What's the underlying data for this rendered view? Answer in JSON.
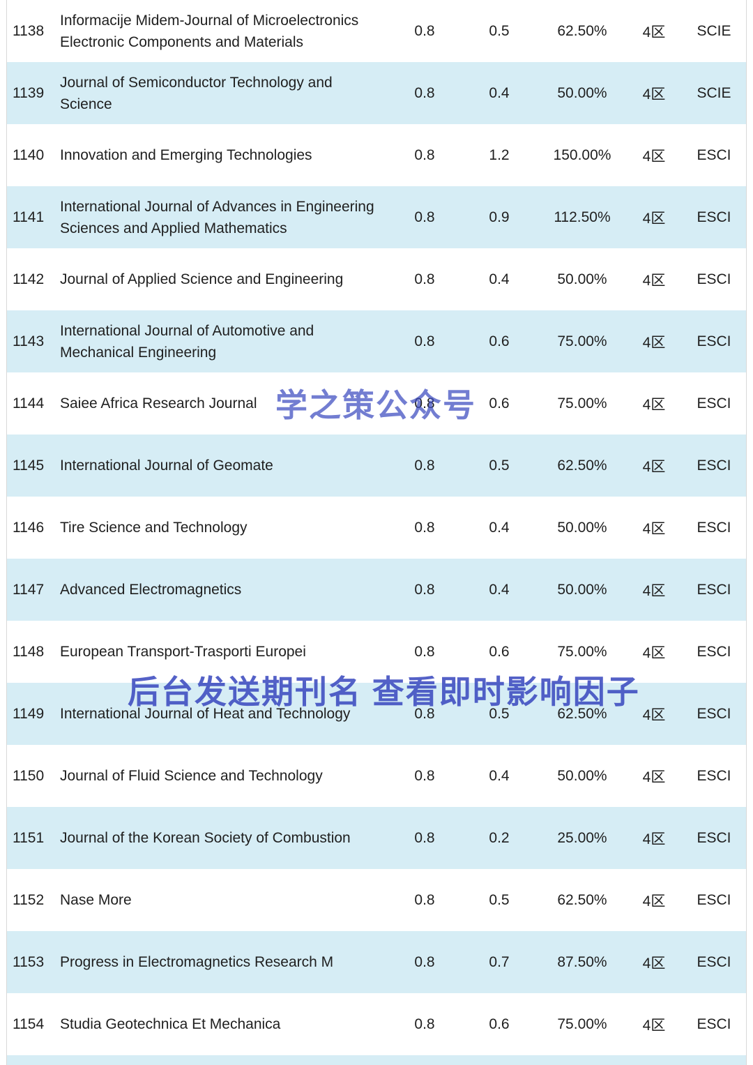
{
  "page": {
    "background": "#ffffff",
    "row_alt_color": "#d6edf5",
    "text_color": "#1f1f1f",
    "border_color": "#d8d8d8"
  },
  "watermarks": {
    "center": "学之策公众号",
    "bottom": "后台发送期刊名 查看即时影响因子",
    "color": "#3d4cc0"
  },
  "table": {
    "columns": [
      "num",
      "name",
      "if1",
      "if2",
      "pct",
      "zone",
      "index"
    ],
    "rows": [
      {
        "num": "1138",
        "name": "Informacije Midem-Journal of Microelectronics Electronic Components and Materials",
        "if1": "0.8",
        "if2": "0.5",
        "pct": "62.50%",
        "zone": "4区",
        "index": "SCIE"
      },
      {
        "num": "1139",
        "name": "Journal of Semiconductor Technology and Science",
        "if1": "0.8",
        "if2": "0.4",
        "pct": "50.00%",
        "zone": "4区",
        "index": "SCIE"
      },
      {
        "num": "1140",
        "name": "Innovation and Emerging Technologies",
        "if1": "0.8",
        "if2": "1.2",
        "pct": "150.00%",
        "zone": "4区",
        "index": "ESCI"
      },
      {
        "num": "1141",
        "name": "International Journal of Advances in Engineering Sciences and Applied Mathematics",
        "if1": "0.8",
        "if2": "0.9",
        "pct": "112.50%",
        "zone": "4区",
        "index": "ESCI"
      },
      {
        "num": "1142",
        "name": "Journal of Applied Science and Engineering",
        "if1": "0.8",
        "if2": "0.4",
        "pct": "50.00%",
        "zone": "4区",
        "index": "ESCI"
      },
      {
        "num": "1143",
        "name": "International Journal of Automotive and Mechanical Engineering",
        "if1": "0.8",
        "if2": "0.6",
        "pct": "75.00%",
        "zone": "4区",
        "index": "ESCI"
      },
      {
        "num": "1144",
        "name": "Saiee Africa Research Journal",
        "if1": "0.8",
        "if2": "0.6",
        "pct": "75.00%",
        "zone": "4区",
        "index": "ESCI"
      },
      {
        "num": "1145",
        "name": "International Journal of Geomate",
        "if1": "0.8",
        "if2": "0.5",
        "pct": "62.50%",
        "zone": "4区",
        "index": "ESCI"
      },
      {
        "num": "1146",
        "name": "Tire Science and Technology",
        "if1": "0.8",
        "if2": "0.4",
        "pct": "50.00%",
        "zone": "4区",
        "index": "ESCI"
      },
      {
        "num": "1147",
        "name": "Advanced Electromagnetics",
        "if1": "0.8",
        "if2": "0.4",
        "pct": "50.00%",
        "zone": "4区",
        "index": "ESCI"
      },
      {
        "num": "1148",
        "name": "European Transport-Trasporti Europei",
        "if1": "0.8",
        "if2": "0.6",
        "pct": "75.00%",
        "zone": "4区",
        "index": "ESCI"
      },
      {
        "num": "1149",
        "name": "International Journal of Heat and Technology",
        "if1": "0.8",
        "if2": "0.5",
        "pct": "62.50%",
        "zone": "4区",
        "index": "ESCI"
      },
      {
        "num": "1150",
        "name": "Journal of Fluid Science and Technology",
        "if1": "0.8",
        "if2": "0.4",
        "pct": "50.00%",
        "zone": "4区",
        "index": "ESCI"
      },
      {
        "num": "1151",
        "name": "Journal of the Korean Society of Combustion",
        "if1": "0.8",
        "if2": "0.2",
        "pct": "25.00%",
        "zone": "4区",
        "index": "ESCI"
      },
      {
        "num": "1152",
        "name": "Nase More",
        "if1": "0.8",
        "if2": "0.5",
        "pct": "62.50%",
        "zone": "4区",
        "index": "ESCI"
      },
      {
        "num": "1153",
        "name": "Progress in Electromagnetics Research M",
        "if1": "0.8",
        "if2": "0.7",
        "pct": "87.50%",
        "zone": "4区",
        "index": "ESCI"
      },
      {
        "num": "1154",
        "name": "Studia Geotechnica Et Mechanica",
        "if1": "0.8",
        "if2": "0.6",
        "pct": "75.00%",
        "zone": "4区",
        "index": "ESCI"
      }
    ]
  }
}
